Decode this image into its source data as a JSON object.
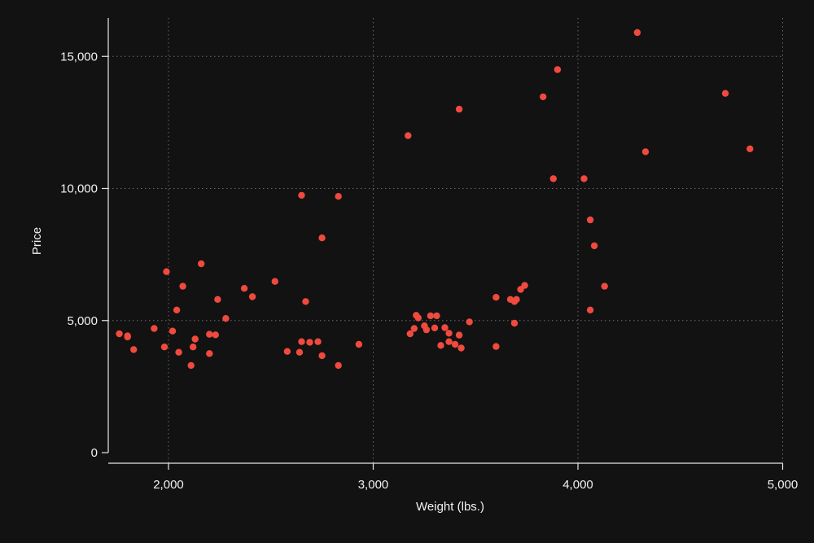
{
  "chart_data": {
    "type": "scatter",
    "title": "",
    "xlabel": "Weight (lbs.)",
    "ylabel": "Price",
    "xlim": [
      1700,
      5000
    ],
    "ylim": [
      0,
      16000
    ],
    "x_ticks": [
      2000,
      3000,
      4000,
      5000
    ],
    "x_tick_labels": [
      "2,000",
      "3,000",
      "4,000",
      "5,000"
    ],
    "y_ticks": [
      0,
      5000,
      10000,
      15000
    ],
    "y_tick_labels": [
      "0",
      "5,000",
      "10,000",
      "15,000"
    ],
    "grid": true,
    "legend": "none",
    "marker_color": "#f04a3e",
    "background_color": "#121212",
    "points": [
      {
        "x": 1760,
        "y": 4500
      },
      {
        "x": 1800,
        "y": 4420
      },
      {
        "x": 1800,
        "y": 4380
      },
      {
        "x": 1830,
        "y": 3900
      },
      {
        "x": 1930,
        "y": 4700
      },
      {
        "x": 1980,
        "y": 4000
      },
      {
        "x": 1990,
        "y": 6850
      },
      {
        "x": 2020,
        "y": 4600
      },
      {
        "x": 2040,
        "y": 5400
      },
      {
        "x": 2050,
        "y": 3800
      },
      {
        "x": 2070,
        "y": 6300
      },
      {
        "x": 2110,
        "y": 3300
      },
      {
        "x": 2120,
        "y": 4000
      },
      {
        "x": 2130,
        "y": 4300
      },
      {
        "x": 2160,
        "y": 7150
      },
      {
        "x": 2200,
        "y": 4480
      },
      {
        "x": 2200,
        "y": 3750
      },
      {
        "x": 2230,
        "y": 4460
      },
      {
        "x": 2240,
        "y": 5800
      },
      {
        "x": 2280,
        "y": 5080
      },
      {
        "x": 2370,
        "y": 6220
      },
      {
        "x": 2410,
        "y": 5900
      },
      {
        "x": 2520,
        "y": 6480
      },
      {
        "x": 2580,
        "y": 3830
      },
      {
        "x": 2640,
        "y": 3800
      },
      {
        "x": 2650,
        "y": 4200
      },
      {
        "x": 2650,
        "y": 9740
      },
      {
        "x": 2670,
        "y": 5720
      },
      {
        "x": 2690,
        "y": 4180
      },
      {
        "x": 2730,
        "y": 4200
      },
      {
        "x": 2750,
        "y": 8130
      },
      {
        "x": 2750,
        "y": 3670
      },
      {
        "x": 2830,
        "y": 9700
      },
      {
        "x": 2830,
        "y": 3300
      },
      {
        "x": 2930,
        "y": 4100
      },
      {
        "x": 3170,
        "y": 12000
      },
      {
        "x": 3180,
        "y": 4500
      },
      {
        "x": 3200,
        "y": 4700
      },
      {
        "x": 3210,
        "y": 5200
      },
      {
        "x": 3220,
        "y": 5100
      },
      {
        "x": 3250,
        "y": 4800
      },
      {
        "x": 3260,
        "y": 4650
      },
      {
        "x": 3280,
        "y": 5180
      },
      {
        "x": 3300,
        "y": 4720
      },
      {
        "x": 3310,
        "y": 5180
      },
      {
        "x": 3330,
        "y": 4060
      },
      {
        "x": 3350,
        "y": 4730
      },
      {
        "x": 3370,
        "y": 4520
      },
      {
        "x": 3370,
        "y": 4200
      },
      {
        "x": 3400,
        "y": 4100
      },
      {
        "x": 3420,
        "y": 13000
      },
      {
        "x": 3420,
        "y": 4450
      },
      {
        "x": 3430,
        "y": 3960
      },
      {
        "x": 3470,
        "y": 4950
      },
      {
        "x": 3600,
        "y": 5880
      },
      {
        "x": 3600,
        "y": 4020
      },
      {
        "x": 3670,
        "y": 5800
      },
      {
        "x": 3690,
        "y": 5720
      },
      {
        "x": 3690,
        "y": 4900
      },
      {
        "x": 3700,
        "y": 5800
      },
      {
        "x": 3720,
        "y": 6180
      },
      {
        "x": 3740,
        "y": 6330
      },
      {
        "x": 3830,
        "y": 13470
      },
      {
        "x": 3880,
        "y": 10370
      },
      {
        "x": 3900,
        "y": 14500
      },
      {
        "x": 4030,
        "y": 10370
      },
      {
        "x": 4060,
        "y": 8810
      },
      {
        "x": 4060,
        "y": 5400
      },
      {
        "x": 4080,
        "y": 7830
      },
      {
        "x": 4130,
        "y": 6300
      },
      {
        "x": 4290,
        "y": 15900
      },
      {
        "x": 4330,
        "y": 11390
      },
      {
        "x": 4720,
        "y": 13600
      },
      {
        "x": 4840,
        "y": 11500
      }
    ]
  }
}
